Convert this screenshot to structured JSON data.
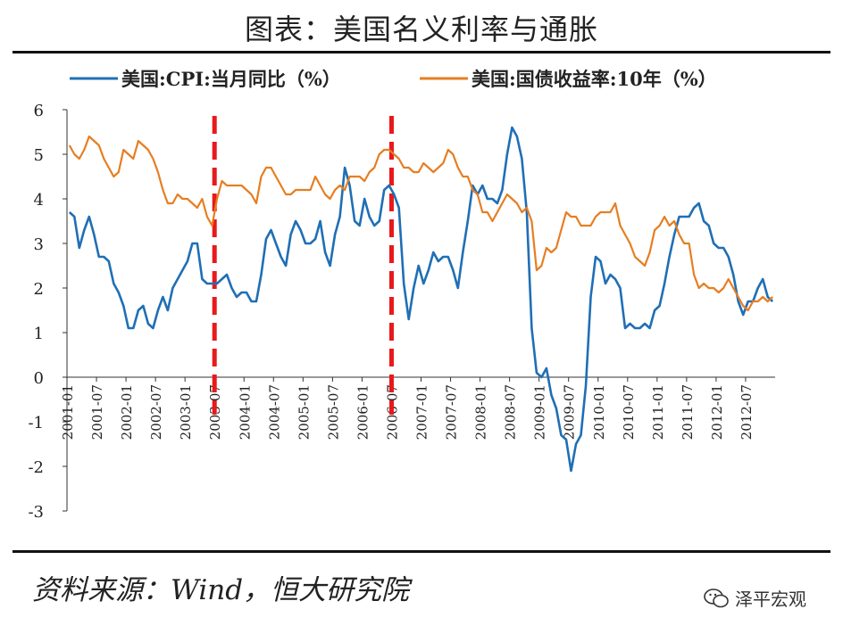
{
  "header": {
    "title": "图表：美国名义利率与通胀"
  },
  "footer": {
    "source": "资料来源：Wind，恒大研究院",
    "watermark": "泽平宏观"
  },
  "colors": {
    "cpi": "#1f6fb5",
    "yield": "#e67e22",
    "marker": "#e8191b"
  },
  "chart_data": {
    "type": "line",
    "ylim": [
      -3,
      6
    ],
    "yticks": [
      -3,
      -2,
      -1,
      0,
      1,
      2,
      3,
      4,
      5,
      6
    ],
    "xticks": [
      "2001-01",
      "2001-07",
      "2002-01",
      "2002-07",
      "2003-01",
      "2003-07",
      "2004-01",
      "2004-07",
      "2005-01",
      "2005-07",
      "2006-01",
      "2006-07",
      "2007-01",
      "2007-07",
      "2008-01",
      "2008-07",
      "2009-01",
      "2009-07",
      "2010-01",
      "2010-07",
      "2011-01",
      "2011-07",
      "2012-01",
      "2012-07"
    ],
    "legend_position": "top",
    "markers": [
      "2003-07",
      "2006-07"
    ],
    "series": [
      {
        "name": "美国:CPI:当月同比（%）",
        "key": "cpi",
        "x": [
          "2001-01",
          "2001-02",
          "2001-03",
          "2001-04",
          "2001-05",
          "2001-06",
          "2001-07",
          "2001-08",
          "2001-09",
          "2001-10",
          "2001-11",
          "2001-12",
          "2002-01",
          "2002-02",
          "2002-03",
          "2002-04",
          "2002-05",
          "2002-06",
          "2002-07",
          "2002-08",
          "2002-09",
          "2002-10",
          "2002-11",
          "2002-12",
          "2003-01",
          "2003-02",
          "2003-03",
          "2003-04",
          "2003-05",
          "2003-06",
          "2003-07",
          "2003-08",
          "2003-09",
          "2003-10",
          "2003-11",
          "2003-12",
          "2004-01",
          "2004-02",
          "2004-03",
          "2004-04",
          "2004-05",
          "2004-06",
          "2004-07",
          "2004-08",
          "2004-09",
          "2004-10",
          "2004-11",
          "2004-12",
          "2005-01",
          "2005-02",
          "2005-03",
          "2005-04",
          "2005-05",
          "2005-06",
          "2005-07",
          "2005-08",
          "2005-09",
          "2005-10",
          "2005-11",
          "2005-12",
          "2006-01",
          "2006-02",
          "2006-03",
          "2006-04",
          "2006-05",
          "2006-06",
          "2006-07",
          "2006-08",
          "2006-09",
          "2006-10",
          "2006-11",
          "2006-12",
          "2007-01",
          "2007-02",
          "2007-03",
          "2007-04",
          "2007-05",
          "2007-06",
          "2007-07",
          "2007-08",
          "2007-09",
          "2007-10",
          "2007-11",
          "2007-12",
          "2008-01",
          "2008-02",
          "2008-03",
          "2008-04",
          "2008-05",
          "2008-06",
          "2008-07",
          "2008-08",
          "2008-09",
          "2008-10",
          "2008-11",
          "2008-12",
          "2009-01",
          "2009-02",
          "2009-03",
          "2009-04",
          "2009-05",
          "2009-06",
          "2009-07",
          "2009-08",
          "2009-09",
          "2009-10",
          "2009-11",
          "2009-12",
          "2010-01",
          "2010-02",
          "2010-03",
          "2010-04",
          "2010-05",
          "2010-06",
          "2010-07",
          "2010-08",
          "2010-09",
          "2010-10",
          "2010-11",
          "2010-12",
          "2011-01",
          "2011-02",
          "2011-03",
          "2011-04",
          "2011-05",
          "2011-06",
          "2011-07",
          "2011-08",
          "2011-09",
          "2011-10",
          "2011-11",
          "2011-12",
          "2012-01",
          "2012-02",
          "2012-03",
          "2012-04",
          "2012-05",
          "2012-06",
          "2012-07",
          "2012-08",
          "2012-09",
          "2012-10",
          "2012-11",
          "2012-12"
        ],
        "values": [
          3.7,
          3.6,
          2.9,
          3.3,
          3.6,
          3.2,
          2.7,
          2.7,
          2.6,
          2.1,
          1.9,
          1.6,
          1.1,
          1.1,
          1.5,
          1.6,
          1.2,
          1.1,
          1.5,
          1.8,
          1.5,
          2.0,
          2.2,
          2.4,
          2.6,
          3.0,
          3.0,
          2.2,
          2.1,
          2.1,
          2.1,
          2.2,
          2.3,
          2.0,
          1.8,
          1.9,
          1.9,
          1.7,
          1.7,
          2.3,
          3.1,
          3.3,
          3.0,
          2.7,
          2.5,
          3.2,
          3.5,
          3.3,
          3.0,
          3.0,
          3.1,
          3.5,
          2.8,
          2.5,
          3.2,
          3.6,
          4.7,
          4.3,
          3.5,
          3.4,
          4.0,
          3.6,
          3.4,
          3.5,
          4.2,
          4.3,
          4.1,
          3.8,
          2.1,
          1.3,
          2.0,
          2.5,
          2.1,
          2.4,
          2.8,
          2.6,
          2.7,
          2.7,
          2.4,
          2.0,
          2.8,
          3.5,
          4.3,
          4.1,
          4.3,
          4.0,
          4.0,
          3.9,
          4.2,
          5.0,
          5.6,
          5.4,
          4.9,
          3.7,
          1.1,
          0.1,
          0.0,
          0.2,
          -0.4,
          -0.7,
          -1.3,
          -1.4,
          -2.1,
          -1.5,
          -1.3,
          -0.2,
          1.8,
          2.7,
          2.6,
          2.1,
          2.3,
          2.2,
          2.0,
          1.1,
          1.2,
          1.1,
          1.1,
          1.2,
          1.1,
          1.5,
          1.6,
          2.1,
          2.7,
          3.2,
          3.6,
          3.6,
          3.6,
          3.8,
          3.9,
          3.5,
          3.4,
          3.0,
          2.9,
          2.9,
          2.7,
          2.3,
          1.7,
          1.4,
          1.7,
          1.7,
          2.0,
          2.2,
          1.8,
          1.7
        ]
      },
      {
        "name": "美国:国债收益率:10年（%）",
        "key": "yield",
        "x": [
          "2001-01",
          "2001-02",
          "2001-03",
          "2001-04",
          "2001-05",
          "2001-06",
          "2001-07",
          "2001-08",
          "2001-09",
          "2001-10",
          "2001-11",
          "2001-12",
          "2002-01",
          "2002-02",
          "2002-03",
          "2002-04",
          "2002-05",
          "2002-06",
          "2002-07",
          "2002-08",
          "2002-09",
          "2002-10",
          "2002-11",
          "2002-12",
          "2003-01",
          "2003-02",
          "2003-03",
          "2003-04",
          "2003-05",
          "2003-06",
          "2003-07",
          "2003-08",
          "2003-09",
          "2003-10",
          "2003-11",
          "2003-12",
          "2004-01",
          "2004-02",
          "2004-03",
          "2004-04",
          "2004-05",
          "2004-06",
          "2004-07",
          "2004-08",
          "2004-09",
          "2004-10",
          "2004-11",
          "2004-12",
          "2005-01",
          "2005-02",
          "2005-03",
          "2005-04",
          "2005-05",
          "2005-06",
          "2005-07",
          "2005-08",
          "2005-09",
          "2005-10",
          "2005-11",
          "2005-12",
          "2006-01",
          "2006-02",
          "2006-03",
          "2006-04",
          "2006-05",
          "2006-06",
          "2006-07",
          "2006-08",
          "2006-09",
          "2006-10",
          "2006-11",
          "2006-12",
          "2007-01",
          "2007-02",
          "2007-03",
          "2007-04",
          "2007-05",
          "2007-06",
          "2007-07",
          "2007-08",
          "2007-09",
          "2007-10",
          "2007-11",
          "2007-12",
          "2008-01",
          "2008-02",
          "2008-03",
          "2008-04",
          "2008-05",
          "2008-06",
          "2008-07",
          "2008-08",
          "2008-09",
          "2008-10",
          "2008-11",
          "2008-12",
          "2009-01",
          "2009-02",
          "2009-03",
          "2009-04",
          "2009-05",
          "2009-06",
          "2009-07",
          "2009-08",
          "2009-09",
          "2009-10",
          "2009-11",
          "2009-12",
          "2010-01",
          "2010-02",
          "2010-03",
          "2010-04",
          "2010-05",
          "2010-06",
          "2010-07",
          "2010-08",
          "2010-09",
          "2010-10",
          "2010-11",
          "2010-12",
          "2011-01",
          "2011-02",
          "2011-03",
          "2011-04",
          "2011-05",
          "2011-06",
          "2011-07",
          "2011-08",
          "2011-09",
          "2011-10",
          "2011-11",
          "2011-12",
          "2012-01",
          "2012-02",
          "2012-03",
          "2012-04",
          "2012-05",
          "2012-06",
          "2012-07",
          "2012-08",
          "2012-09",
          "2012-10",
          "2012-11",
          "2012-12"
        ],
        "values": [
          5.2,
          5.0,
          4.9,
          5.1,
          5.4,
          5.3,
          5.2,
          4.9,
          4.7,
          4.5,
          4.6,
          5.1,
          5.0,
          4.9,
          5.3,
          5.2,
          5.1,
          4.9,
          4.6,
          4.2,
          3.9,
          3.9,
          4.1,
          4.0,
          4.0,
          3.9,
          3.8,
          4.0,
          3.6,
          3.4,
          4.0,
          4.4,
          4.3,
          4.3,
          4.3,
          4.3,
          4.2,
          4.1,
          3.9,
          4.5,
          4.7,
          4.7,
          4.5,
          4.3,
          4.1,
          4.1,
          4.2,
          4.2,
          4.2,
          4.2,
          4.5,
          4.3,
          4.1,
          4.0,
          4.2,
          4.3,
          4.2,
          4.5,
          4.5,
          4.5,
          4.4,
          4.6,
          4.7,
          5.0,
          5.1,
          5.1,
          5.0,
          4.9,
          4.7,
          4.7,
          4.6,
          4.6,
          4.8,
          4.7,
          4.6,
          4.7,
          4.8,
          5.1,
          5.0,
          4.7,
          4.5,
          4.5,
          4.2,
          4.1,
          3.7,
          3.7,
          3.5,
          3.7,
          3.9,
          4.1,
          4.0,
          3.9,
          3.7,
          3.8,
          3.5,
          2.4,
          2.5,
          2.9,
          2.8,
          2.9,
          3.3,
          3.7,
          3.6,
          3.6,
          3.4,
          3.4,
          3.4,
          3.6,
          3.7,
          3.7,
          3.7,
          3.9,
          3.4,
          3.2,
          3.0,
          2.7,
          2.6,
          2.5,
          2.8,
          3.3,
          3.4,
          3.6,
          3.4,
          3.5,
          3.2,
          3.0,
          3.0,
          2.3,
          2.0,
          2.1,
          2.0,
          2.0,
          1.9,
          2.0,
          2.2,
          2.0,
          1.8,
          1.6,
          1.5,
          1.7,
          1.7,
          1.8,
          1.7,
          1.8
        ]
      }
    ]
  }
}
